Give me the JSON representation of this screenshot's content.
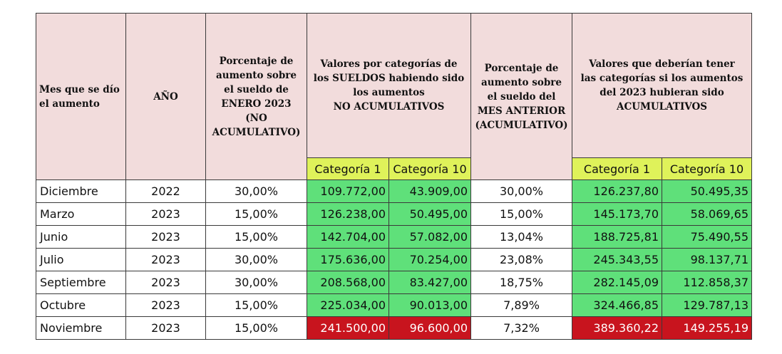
{
  "headers": {
    "mes": "Mes que se dío\nel aumento",
    "anio": "AÑO",
    "pct_enero": "Porcentaje de\naumento sobre\nel sueldo de\nENERO 2023\n(NO\nACUMULATIVO)",
    "valores_no_acum": "Valores por categorías de\nlos SUELDOS habiendo sido\nlos aumentos\nNO ACUMULATIVOS",
    "pct_anterior": "Porcentaje de\naumento sobre\nel sueldo del\nMES ANTERIOR\n(ACUMULATIVO)",
    "valores_acum": "Valores que deberían tener\nlas categorías si los aumentos\ndel 2023 hubieran sido\nACUMULATIVOS",
    "cat1": "Categoría 1",
    "cat10": "Categoría 10"
  },
  "rows": [
    {
      "mes": "Diciembre",
      "anio": "2022",
      "pct_enero": "30,00%",
      "na_cat1": "109.772,00",
      "na_cat10": "43.909,00",
      "pct_anterior": "30,00%",
      "ac_cat1": "126.237,80",
      "ac_cat10": "50.495,35"
    },
    {
      "mes": "Marzo",
      "anio": "2023",
      "pct_enero": "15,00%",
      "na_cat1": "126.238,00",
      "na_cat10": "50.495,00",
      "pct_anterior": "15,00%",
      "ac_cat1": "145.173,70",
      "ac_cat10": "58.069,65"
    },
    {
      "mes": "Junio",
      "anio": "2023",
      "pct_enero": "15,00%",
      "na_cat1": "142.704,00",
      "na_cat10": "57.082,00",
      "pct_anterior": "13,04%",
      "ac_cat1": "188.725,81",
      "ac_cat10": "75.490,55"
    },
    {
      "mes": "Julio",
      "anio": "2023",
      "pct_enero": "30,00%",
      "na_cat1": "175.636,00",
      "na_cat10": "70.254,00",
      "pct_anterior": "23,08%",
      "ac_cat1": "245.343,55",
      "ac_cat10": "98.137,71"
    },
    {
      "mes": "Septiembre",
      "anio": "2023",
      "pct_enero": "30,00%",
      "na_cat1": "208.568,00",
      "na_cat10": "83.427,00",
      "pct_anterior": "18,75%",
      "ac_cat1": "282.145,09",
      "ac_cat10": "112.858,37"
    },
    {
      "mes": "Octubre",
      "anio": "2023",
      "pct_enero": "15,00%",
      "na_cat1": "225.034,00",
      "na_cat10": "90.013,00",
      "pct_anterior": "7,89%",
      "ac_cat1": "324.466,85",
      "ac_cat10": "129.787,13"
    },
    {
      "mes": "Noviembre",
      "anio": "2023",
      "pct_enero": "15,00%",
      "na_cat1": "241.500,00",
      "na_cat10": "96.600,00",
      "pct_anterior": "7,32%",
      "ac_cat1": "389.360,22",
      "ac_cat10": "149.255,19"
    }
  ],
  "colors": {
    "header_bg": "#f2dcdc",
    "subheader_bg": "#dff25a",
    "value_green": "#5fe07a",
    "value_red": "#c8141e"
  }
}
